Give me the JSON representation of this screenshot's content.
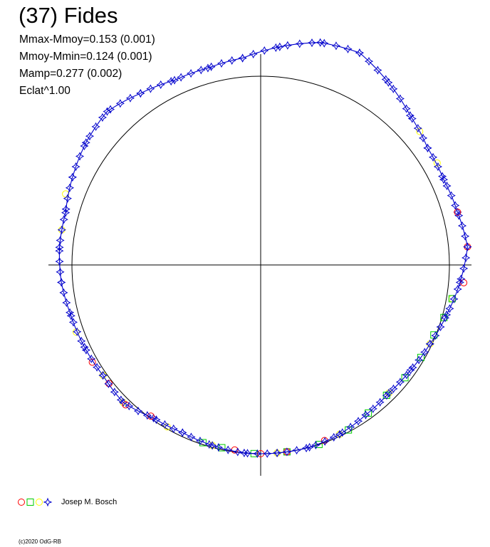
{
  "title": "(37) Fides",
  "stats": [
    "Mmax-Mmoy=0.153 (0.001)",
    "Mmoy-Mmin=0.124 (0.001)",
    "Mamp=0.277 (0.002)",
    "Eclat^1.00"
  ],
  "legend": {
    "observer": "Josep M. Bosch",
    "markers": [
      {
        "shape": "circle",
        "color": "#ff0000"
      },
      {
        "shape": "square",
        "color": "#00cc00"
      },
      {
        "shape": "circle",
        "color": "#ffff00"
      },
      {
        "shape": "star",
        "color": "#0000cc"
      }
    ]
  },
  "copyright": "(c)2020 OdG-RB",
  "chart_data": {
    "type": "scatter",
    "coordinate_system": "polar",
    "reference_circle_radius": 1.0,
    "series": [
      {
        "marker": "star",
        "color": "#0000cc",
        "points": [
          [
            5,
            1.1
          ],
          [
            15,
            1.08
          ],
          [
            25,
            1.07
          ],
          [
            35,
            1.08
          ],
          [
            45,
            1.12
          ],
          [
            55,
            1.18
          ],
          [
            65,
            1.24
          ],
          [
            75,
            1.22
          ],
          [
            85,
            1.16
          ],
          [
            95,
            1.1
          ],
          [
            105,
            1.08
          ],
          [
            115,
            1.08
          ],
          [
            125,
            1.11
          ],
          [
            135,
            1.15
          ],
          [
            145,
            1.13
          ],
          [
            155,
            1.1
          ],
          [
            165,
            1.07
          ],
          [
            175,
            1.07
          ],
          [
            185,
            1.06
          ],
          [
            195,
            1.04
          ],
          [
            205,
            1.03
          ],
          [
            215,
            1.02
          ],
          [
            225,
            1.03
          ],
          [
            235,
            0.99
          ],
          [
            245,
            0.98
          ],
          [
            255,
            0.99
          ],
          [
            265,
            1.0
          ],
          [
            275,
            1.0
          ],
          [
            285,
            1.0
          ],
          [
            295,
            0.99
          ],
          [
            305,
            0.97
          ],
          [
            315,
            0.96
          ],
          [
            325,
            0.97
          ],
          [
            335,
            0.99
          ],
          [
            345,
            1.02
          ],
          [
            355,
            1.06
          ]
        ]
      },
      {
        "marker": "circle",
        "color": "#ff0000",
        "points": [
          [
            -5,
            1.08
          ],
          [
            5,
            1.1
          ],
          [
            15,
            1.08
          ],
          [
            210,
            1.03
          ],
          [
            218,
            1.02
          ],
          [
            226,
            1.03
          ],
          [
            234,
            0.99
          ],
          [
            262,
            0.99
          ],
          [
            270,
            1.0
          ],
          [
            278,
            1.0
          ],
          [
            290,
            0.99
          ]
        ]
      },
      {
        "marker": "square",
        "color": "#00cc00",
        "points": [
          [
            252,
            0.99
          ],
          [
            258,
            0.99
          ],
          [
            268,
            1.0
          ],
          [
            278,
            1.0
          ],
          [
            288,
            1.0
          ],
          [
            298,
            0.99
          ],
          [
            306,
            0.97
          ],
          [
            314,
            0.96
          ],
          [
            322,
            0.97
          ],
          [
            330,
            0.98
          ],
          [
            338,
            0.99
          ],
          [
            344,
            1.01
          ],
          [
            350,
            1.03
          ]
        ]
      },
      {
        "marker": "circle",
        "color": "#ffff00",
        "points": [
          [
            30,
            1.08
          ],
          [
            40,
            1.1
          ],
          [
            160,
            1.1
          ],
          [
            170,
            1.07
          ],
          [
            200,
            1.04
          ],
          [
            215,
            1.02
          ],
          [
            225,
            1.03
          ],
          [
            240,
            0.99
          ],
          [
            255,
            0.99
          ],
          [
            275,
            1.0
          ],
          [
            295,
            0.99
          ],
          [
            315,
            0.96
          ],
          [
            335,
            0.99
          ],
          [
            350,
            1.03
          ]
        ]
      }
    ]
  }
}
